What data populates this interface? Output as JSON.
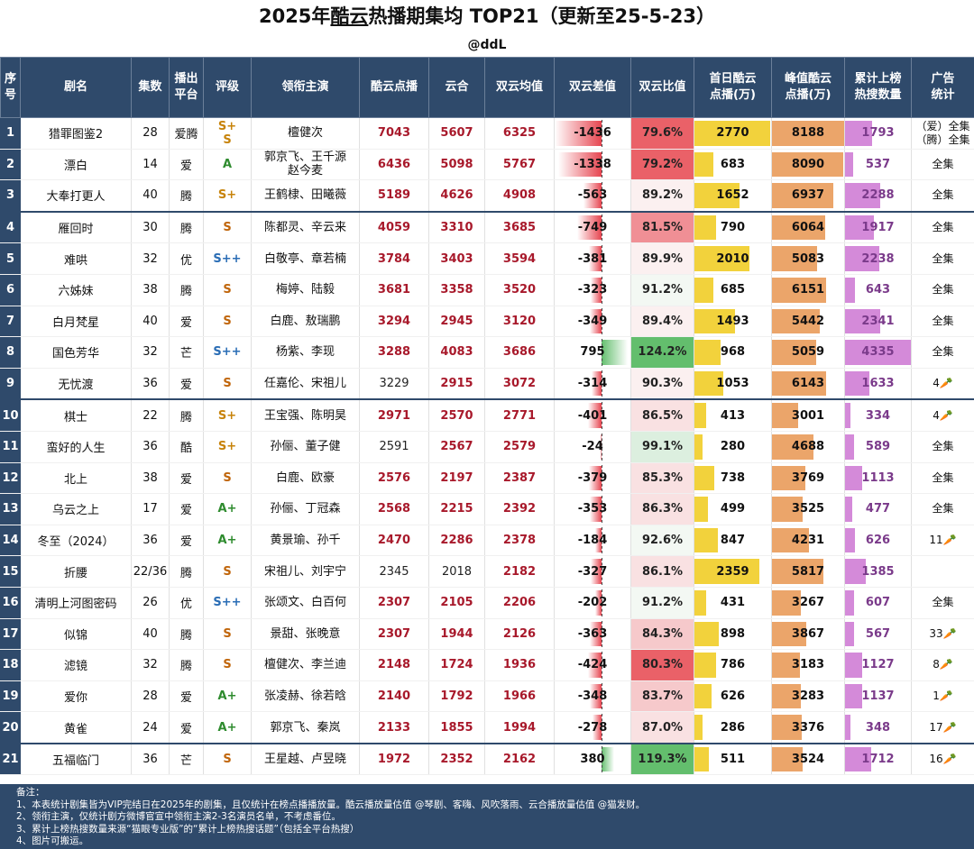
{
  "title_pre": "2025年",
  "title_u": "酷云",
  "title_post": "热播期集均 TOP21（更新至25-5-23）",
  "handle": "@ddL",
  "headers": {
    "idx": "序号",
    "name": "剧名",
    "eps": "集数",
    "platform": "播出平台",
    "rating": "评级",
    "cast": "领衔主演",
    "kuyun": "酷云点播",
    "yunhe": "云合",
    "avg": "双云均值",
    "diff": "双云差值",
    "ratio": "双云比值",
    "first": "首日酷云点播(万)",
    "peak": "峰值酷云点播(万)",
    "hot": "累计上榜热搜数量",
    "ad": "广告统计"
  },
  "colors": {
    "header_bg": "#2f4a6b",
    "first_bar": "#f2d23c",
    "peak_bar": "#eba56a",
    "hot_bar": "#d48ad9",
    "neg_bar": "#e64550",
    "pos_bar": "#63be6d"
  },
  "rows": [
    {
      "idx": "1",
      "name": "猎罪图鉴2",
      "eps": "28",
      "platform": "爱腾",
      "rating": "S+\nS",
      "cast": "檀健次",
      "kuyun": "7043",
      "yunhe": "5607",
      "avg": "6325",
      "diff": "-1436",
      "diff_v": -1436,
      "ratio": "79.6%",
      "ratio_v": 79.6,
      "first": "2770",
      "first_v": 2770,
      "peak": "8188",
      "peak_v": 8188,
      "hot": "1793",
      "hot_v": 1793,
      "ad": "（爱）全集\n（腾）全集"
    },
    {
      "idx": "2",
      "name": "漂白",
      "eps": "14",
      "platform": "爱",
      "rating": "A",
      "cast": "郭京飞、王千源\n赵今麦",
      "kuyun": "6436",
      "yunhe": "5098",
      "avg": "5767",
      "diff": "-1338",
      "diff_v": -1338,
      "ratio": "79.2%",
      "ratio_v": 79.2,
      "first": "683",
      "first_v": 683,
      "peak": "8090",
      "peak_v": 8090,
      "hot": "537",
      "hot_v": 537,
      "ad": "全集"
    },
    {
      "idx": "3",
      "name": "大奉打更人",
      "eps": "40",
      "platform": "腾",
      "rating": "S+",
      "cast": "王鹤棣、田曦薇",
      "kuyun": "5189",
      "yunhe": "4626",
      "avg": "4908",
      "diff": "-563",
      "diff_v": -563,
      "ratio": "89.2%",
      "ratio_v": 89.2,
      "first": "1652",
      "first_v": 1652,
      "peak": "6937",
      "peak_v": 6937,
      "hot": "2288",
      "hot_v": 2288,
      "ad": "全集"
    },
    {
      "idx": "4",
      "name": "雁回时",
      "eps": "30",
      "platform": "腾",
      "rating": "S",
      "cast": "陈都灵、辛云来",
      "kuyun": "4059",
      "yunhe": "3310",
      "avg": "3685",
      "diff": "-749",
      "diff_v": -749,
      "ratio": "81.5%",
      "ratio_v": 81.5,
      "first": "790",
      "first_v": 790,
      "peak": "6064",
      "peak_v": 6064,
      "hot": "1917",
      "hot_v": 1917,
      "ad": "全集",
      "sep": true
    },
    {
      "idx": "5",
      "name": "难哄",
      "eps": "32",
      "platform": "优",
      "rating": "S++",
      "cast": "白敬亭、章若楠",
      "kuyun": "3784",
      "yunhe": "3403",
      "avg": "3594",
      "diff": "-381",
      "diff_v": -381,
      "ratio": "89.9%",
      "ratio_v": 89.9,
      "first": "2010",
      "first_v": 2010,
      "peak": "5083",
      "peak_v": 5083,
      "hot": "2238",
      "hot_v": 2238,
      "ad": "全集"
    },
    {
      "idx": "6",
      "name": "六姊妹",
      "eps": "38",
      "platform": "腾",
      "rating": "S",
      "cast": "梅婷、陆毅",
      "kuyun": "3681",
      "yunhe": "3358",
      "avg": "3520",
      "diff": "-323",
      "diff_v": -323,
      "ratio": "91.2%",
      "ratio_v": 91.2,
      "first": "685",
      "first_v": 685,
      "peak": "6151",
      "peak_v": 6151,
      "hot": "643",
      "hot_v": 643,
      "ad": "全集"
    },
    {
      "idx": "7",
      "name": "白月梵星",
      "eps": "40",
      "platform": "爱",
      "rating": "S",
      "cast": "白鹿、敖瑞鹏",
      "kuyun": "3294",
      "yunhe": "2945",
      "avg": "3120",
      "diff": "-349",
      "diff_v": -349,
      "ratio": "89.4%",
      "ratio_v": 89.4,
      "first": "1493",
      "first_v": 1493,
      "peak": "5442",
      "peak_v": 5442,
      "hot": "2341",
      "hot_v": 2341,
      "ad": "全集"
    },
    {
      "idx": "8",
      "name": "国色芳华",
      "eps": "32",
      "platform": "芒",
      "rating": "S++",
      "cast": "杨紫、李现",
      "kuyun": "3288",
      "yunhe": "4083",
      "avg": "3686",
      "diff": "795",
      "diff_v": 795,
      "ratio": "124.2%",
      "ratio_v": 124.2,
      "first": "968",
      "first_v": 968,
      "peak": "5059",
      "peak_v": 5059,
      "hot": "4335",
      "hot_v": 4335,
      "ad": "全集"
    },
    {
      "idx": "9",
      "name": "无忧渡",
      "eps": "36",
      "platform": "爱",
      "rating": "S",
      "cast": "任嘉伦、宋祖儿",
      "kuyun": "3229",
      "yunhe": "2915",
      "avg": "3072",
      "diff": "-314",
      "diff_v": -314,
      "ratio": "90.3%",
      "ratio_v": 90.3,
      "first": "1053",
      "first_v": 1053,
      "peak": "6143",
      "peak_v": 6143,
      "hot": "1633",
      "hot_v": 1633,
      "ad": "4🥕",
      "kuyun_plain": true
    },
    {
      "idx": "10",
      "name": "棋士",
      "eps": "22",
      "platform": "腾",
      "rating": "S+",
      "cast": "王宝强、陈明昊",
      "kuyun": "2971",
      "yunhe": "2570",
      "avg": "2771",
      "diff": "-401",
      "diff_v": -401,
      "ratio": "86.5%",
      "ratio_v": 86.5,
      "first": "413",
      "first_v": 413,
      "peak": "3001",
      "peak_v": 3001,
      "hot": "334",
      "hot_v": 334,
      "ad": "4🥕",
      "sep": true
    },
    {
      "idx": "11",
      "name": "蛮好的人生",
      "eps": "36",
      "platform": "酷",
      "rating": "S+",
      "cast": "孙俪、董子健",
      "kuyun": "2591",
      "yunhe": "2567",
      "avg": "2579",
      "diff": "-24",
      "diff_v": -24,
      "ratio": "99.1%",
      "ratio_v": 99.1,
      "first": "280",
      "first_v": 280,
      "peak": "4688",
      "peak_v": 4688,
      "hot": "589",
      "hot_v": 589,
      "ad": "全集",
      "kuyun_plain": true,
      "rating_blue": true
    },
    {
      "idx": "12",
      "name": "北上",
      "eps": "38",
      "platform": "爱",
      "rating": "S",
      "cast": "白鹿、欧豪",
      "kuyun": "2576",
      "yunhe": "2197",
      "avg": "2387",
      "diff": "-379",
      "diff_v": -379,
      "ratio": "85.3%",
      "ratio_v": 85.3,
      "first": "738",
      "first_v": 738,
      "peak": "3769",
      "peak_v": 3769,
      "hot": "1113",
      "hot_v": 1113,
      "ad": "全集"
    },
    {
      "idx": "13",
      "name": "乌云之上",
      "eps": "17",
      "platform": "爱",
      "rating": "A+",
      "cast": "孙俪、丁冠森",
      "kuyun": "2568",
      "yunhe": "2215",
      "avg": "2392",
      "diff": "-353",
      "diff_v": -353,
      "ratio": "86.3%",
      "ratio_v": 86.3,
      "first": "499",
      "first_v": 499,
      "peak": "3525",
      "peak_v": 3525,
      "hot": "477",
      "hot_v": 477,
      "ad": "全集"
    },
    {
      "idx": "14",
      "name": "冬至（2024）",
      "eps": "36",
      "platform": "爱",
      "rating": "A+",
      "cast": "黄景瑜、孙千",
      "kuyun": "2470",
      "yunhe": "2286",
      "avg": "2378",
      "diff": "-184",
      "diff_v": -184,
      "ratio": "92.6%",
      "ratio_v": 92.6,
      "first": "847",
      "first_v": 847,
      "peak": "4231",
      "peak_v": 4231,
      "hot": "626",
      "hot_v": 626,
      "ad": "11🥕"
    },
    {
      "idx": "15",
      "name": "折腰",
      "eps": "22/36",
      "platform": "腾",
      "rating": "S",
      "cast": "宋祖儿、刘宇宁",
      "kuyun": "2345",
      "yunhe": "2018",
      "avg": "2182",
      "diff": "-327",
      "diff_v": -327,
      "ratio": "86.1%",
      "ratio_v": 86.1,
      "first": "2359",
      "first_v": 2359,
      "peak": "5817",
      "peak_v": 5817,
      "hot": "1385",
      "hot_v": 1385,
      "ad": "",
      "kuyun_plain": true,
      "yunhe_plain": true,
      "hot_plain": true
    },
    {
      "idx": "16",
      "name": "清明上河图密码",
      "eps": "26",
      "platform": "优",
      "rating": "S++",
      "cast": "张颂文、白百何",
      "kuyun": "2307",
      "yunhe": "2105",
      "avg": "2206",
      "diff": "-202",
      "diff_v": -202,
      "ratio": "91.2%",
      "ratio_v": 91.2,
      "first": "431",
      "first_v": 431,
      "peak": "3267",
      "peak_v": 3267,
      "hot": "607",
      "hot_v": 607,
      "ad": "全集"
    },
    {
      "idx": "17",
      "name": "似锦",
      "eps": "40",
      "platform": "腾",
      "rating": "S",
      "cast": "景甜、张晚意",
      "kuyun": "2307",
      "yunhe": "1944",
      "avg": "2126",
      "diff": "-363",
      "diff_v": -363,
      "ratio": "84.3%",
      "ratio_v": 84.3,
      "first": "898",
      "first_v": 898,
      "peak": "3867",
      "peak_v": 3867,
      "hot": "567",
      "hot_v": 567,
      "ad": "33🥕"
    },
    {
      "idx": "18",
      "name": "滤镜",
      "eps": "32",
      "platform": "腾",
      "rating": "S",
      "cast": "檀健次、李兰迪",
      "kuyun": "2148",
      "yunhe": "1724",
      "avg": "1936",
      "diff": "-424",
      "diff_v": -424,
      "ratio": "80.3%",
      "ratio_v": 80.3,
      "first": "786",
      "first_v": 786,
      "peak": "3183",
      "peak_v": 3183,
      "hot": "1127",
      "hot_v": 1127,
      "ad": "8🥕"
    },
    {
      "idx": "19",
      "name": "爱你",
      "eps": "28",
      "platform": "爱",
      "rating": "A+",
      "cast": "张凌赫、徐若晗",
      "kuyun": "2140",
      "yunhe": "1792",
      "avg": "1966",
      "diff": "-348",
      "diff_v": -348,
      "ratio": "83.7%",
      "ratio_v": 83.7,
      "first": "626",
      "first_v": 626,
      "peak": "3283",
      "peak_v": 3283,
      "hot": "1137",
      "hot_v": 1137,
      "ad": "1🥕"
    },
    {
      "idx": "20",
      "name": "黄雀",
      "eps": "24",
      "platform": "爱",
      "rating": "A+",
      "cast": "郭京飞、秦岚",
      "kuyun": "2133",
      "yunhe": "1855",
      "avg": "1994",
      "diff": "-278",
      "diff_v": -278,
      "ratio": "87.0%",
      "ratio_v": 87.0,
      "first": "286",
      "first_v": 286,
      "peak": "3376",
      "peak_v": 3376,
      "hot": "348",
      "hot_v": 348,
      "ad": "17🥕"
    },
    {
      "idx": "21",
      "name": "五福临门",
      "eps": "36",
      "platform": "芒",
      "rating": "S",
      "cast": "王星越、卢昱晓",
      "kuyun": "1972",
      "yunhe": "2352",
      "avg": "2162",
      "diff": "380",
      "diff_v": 380,
      "ratio": "119.3%",
      "ratio_v": 119.3,
      "first": "511",
      "first_v": 511,
      "peak": "3524",
      "peak_v": 3524,
      "hot": "1712",
      "hot_v": 1712,
      "ad": "16🥕",
      "sep": true
    }
  ],
  "notes": [
    "备注：",
    "1、本表统计剧集皆为VIP完结日在2025年的剧集，且仅统计在榜点播播放量。酷云播放量估值 @琴剧、客嗨、风吹落雨、云合播放量估值 @猫发财。",
    "2、领衔主演，仅统计剧方微博官宣中领衔主演2-3名演员名单，不考虑番位。",
    "3、累计上榜热搜数量来源“猫眼专业版”的“累计上榜热搜话题”（包括全平台热搜）",
    "4、图片可搬运。"
  ]
}
